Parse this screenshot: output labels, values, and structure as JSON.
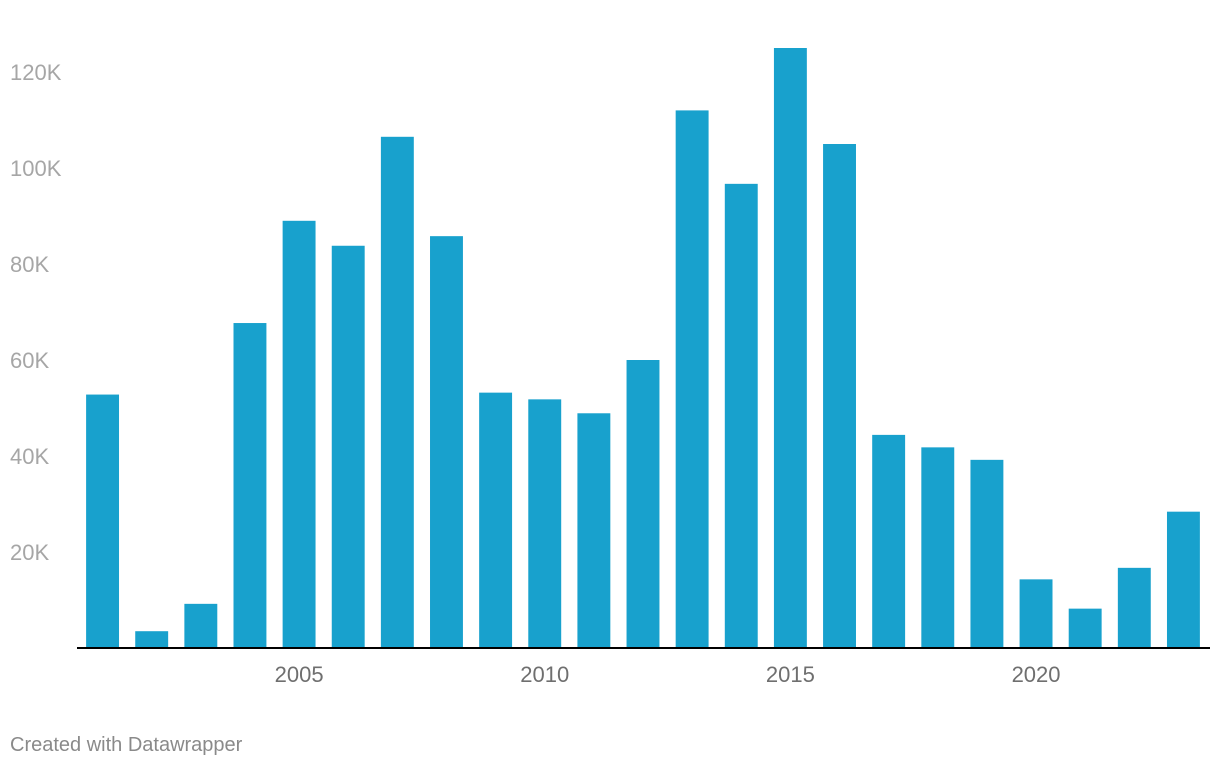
{
  "chart_data": {
    "type": "bar",
    "categories": [
      "2001",
      "2002",
      "2003",
      "2004",
      "2005",
      "2006",
      "2007",
      "2008",
      "2009",
      "2010",
      "2011",
      "2012",
      "2013",
      "2014",
      "2015",
      "2016",
      "2017",
      "2018",
      "2019",
      "2020",
      "2021",
      "2022",
      "2023"
    ],
    "values": [
      52800,
      3500,
      9200,
      67700,
      89000,
      83800,
      106500,
      85800,
      53200,
      51800,
      48900,
      60000,
      112000,
      96700,
      125000,
      105000,
      44400,
      41800,
      39200,
      14300,
      8200,
      16700,
      28400
    ],
    "x_tick_labels": [
      "2005",
      "2010",
      "2015",
      "2020"
    ],
    "y_tick_labels": [
      "20K",
      "40K",
      "60K",
      "80K",
      "100K",
      "120K"
    ],
    "y_ticks": [
      20000,
      40000,
      60000,
      80000,
      100000,
      120000
    ],
    "ylim": [
      0,
      125000
    ],
    "bar_color": "#18a1cd",
    "grid": false,
    "title": "",
    "xlabel": "",
    "ylabel": ""
  },
  "footer": {
    "credit": "Created with Datawrapper"
  }
}
